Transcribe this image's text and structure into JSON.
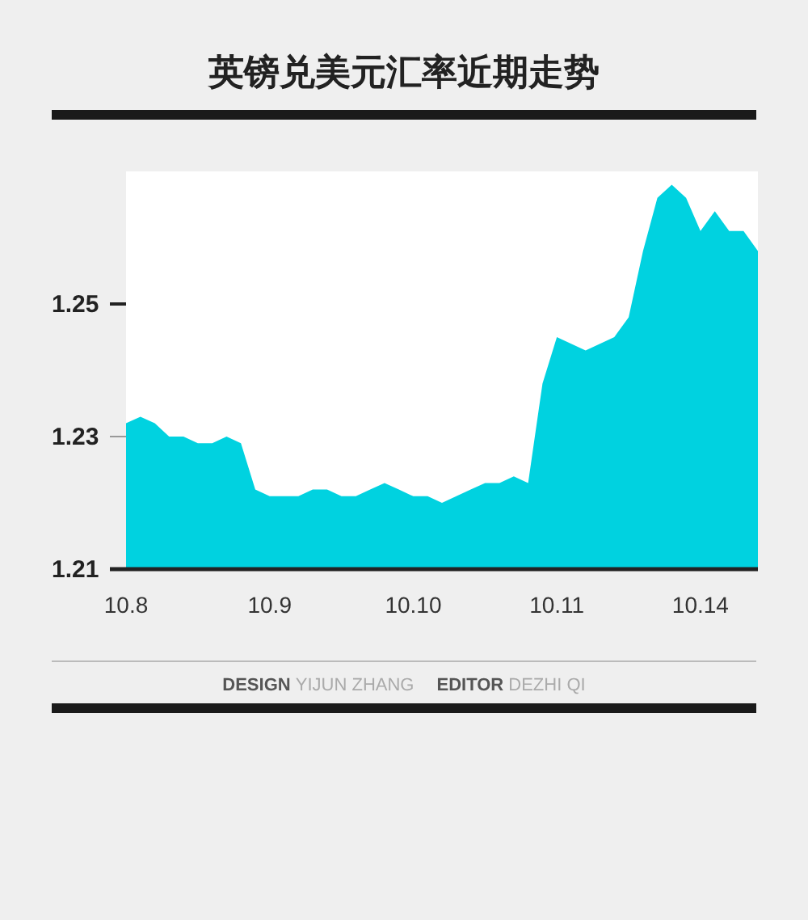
{
  "chart_data": {
    "type": "area",
    "title": "英镑兑美元汇率近期走势",
    "color": "#00d2e0",
    "categories": [
      "10.8",
      null,
      null,
      null,
      null,
      null,
      null,
      null,
      null,
      null,
      "10.9",
      null,
      null,
      null,
      null,
      null,
      null,
      null,
      null,
      null,
      "10.10",
      null,
      null,
      null,
      null,
      null,
      null,
      null,
      null,
      null,
      "10.11",
      null,
      null,
      null,
      null,
      null,
      null,
      null,
      null,
      null,
      "10.14",
      null,
      null,
      null,
      null
    ],
    "values": [
      1.232,
      1.233,
      1.232,
      1.23,
      1.23,
      1.229,
      1.229,
      1.23,
      1.229,
      1.222,
      1.221,
      1.221,
      1.221,
      1.222,
      1.222,
      1.221,
      1.221,
      1.222,
      1.223,
      1.222,
      1.221,
      1.221,
      1.22,
      1.221,
      1.222,
      1.223,
      1.223,
      1.224,
      1.223,
      1.238,
      1.245,
      1.244,
      1.243,
      1.244,
      1.245,
      1.248,
      1.258,
      1.266,
      1.268,
      1.266,
      1.261,
      1.264,
      1.261,
      1.261,
      1.258
    ],
    "ylim": [
      1.21,
      1.27
    ],
    "yticks": [
      1.21,
      1.23,
      1.25
    ],
    "annotations": [
      "DESIGN YIJUN ZHANG",
      "EDITOR DEZHI QI"
    ]
  }
}
